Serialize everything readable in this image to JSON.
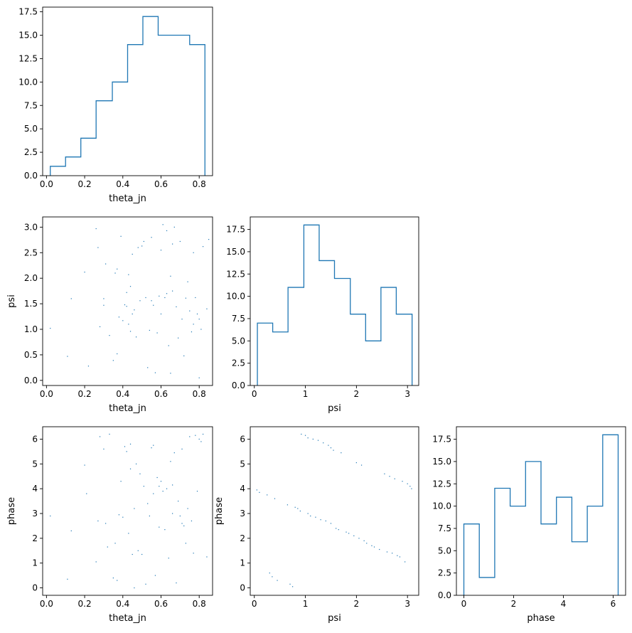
{
  "chart_data": [
    {
      "id": "hist_theta_jn",
      "type": "histogram",
      "xlabel": "theta_jn",
      "ylabel": "",
      "xlim": [
        -0.02,
        0.87
      ],
      "ylim": [
        0,
        18.0
      ],
      "xticks": [
        0.0,
        0.2,
        0.4,
        0.6,
        0.8
      ],
      "xtick_labels": [
        "0.0",
        "0.2",
        "0.4",
        "0.6",
        "0.8"
      ],
      "yticks": [
        0.0,
        2.5,
        5.0,
        7.5,
        10.0,
        12.5,
        15.0,
        17.5
      ],
      "ytick_labels": [
        "0.0",
        "2.5",
        "5.0",
        "7.5",
        "10.0",
        "12.5",
        "15.0",
        "17.5"
      ],
      "bin_edges": [
        0.02,
        0.1,
        0.18,
        0.26,
        0.345,
        0.425,
        0.505,
        0.585,
        0.665,
        0.75,
        0.83
      ],
      "counts": [
        1,
        2,
        4,
        8,
        10,
        14,
        17,
        15,
        15,
        14
      ]
    },
    {
      "id": "scatter_theta_jn_psi",
      "type": "scatter",
      "xlabel": "theta_jn",
      "ylabel": "psi",
      "xlim": [
        -0.02,
        0.87
      ],
      "ylim": [
        -0.1,
        3.2
      ],
      "xticks": [
        0.0,
        0.2,
        0.4,
        0.6,
        0.8
      ],
      "xtick_labels": [
        "0.0",
        "0.2",
        "0.4",
        "0.6",
        "0.8"
      ],
      "yticks": [
        0.0,
        0.5,
        1.0,
        1.5,
        2.0,
        2.5,
        3.0
      ],
      "ytick_labels": [
        "0.0",
        "0.5",
        "1.0",
        "1.5",
        "2.0",
        "2.5",
        "3.0"
      ],
      "points": [
        [
          0.02,
          1.02
        ],
        [
          0.11,
          0.47
        ],
        [
          0.13,
          1.6
        ],
        [
          0.2,
          2.12
        ],
        [
          0.22,
          0.28
        ],
        [
          0.26,
          2.97
        ],
        [
          0.27,
          2.6
        ],
        [
          0.28,
          1.05
        ],
        [
          0.3,
          1.47
        ],
        [
          0.31,
          2.28
        ],
        [
          0.33,
          0.88
        ],
        [
          0.35,
          0.39
        ],
        [
          0.36,
          2.1
        ],
        [
          0.37,
          0.52
        ],
        [
          0.37,
          2.18
        ],
        [
          0.38,
          1.24
        ],
        [
          0.39,
          2.82
        ],
        [
          0.4,
          1.17
        ],
        [
          0.41,
          1.48
        ],
        [
          0.42,
          1.72
        ],
        [
          0.42,
          1.45
        ],
        [
          0.43,
          1.1
        ],
        [
          0.43,
          2.07
        ],
        [
          0.44,
          0.96
        ],
        [
          0.44,
          1.84
        ],
        [
          0.45,
          1.3
        ],
        [
          0.45,
          2.47
        ],
        [
          0.46,
          1.38
        ],
        [
          0.47,
          0.85
        ],
        [
          0.48,
          2.6
        ],
        [
          0.49,
          1.56
        ],
        [
          0.5,
          2.63
        ],
        [
          0.51,
          2.72
        ],
        [
          0.52,
          1.62
        ],
        [
          0.53,
          0.25
        ],
        [
          0.54,
          0.98
        ],
        [
          0.55,
          1.56
        ],
        [
          0.55,
          2.8
        ],
        [
          0.56,
          1.47
        ],
        [
          0.57,
          0.15
        ],
        [
          0.58,
          0.93
        ],
        [
          0.59,
          1.65
        ],
        [
          0.6,
          1.3
        ],
        [
          0.61,
          3.05
        ],
        [
          0.62,
          1.62
        ],
        [
          0.63,
          1.7
        ],
        [
          0.63,
          2.93
        ],
        [
          0.64,
          0.68
        ],
        [
          0.65,
          0.14
        ],
        [
          0.65,
          2.04
        ],
        [
          0.66,
          1.75
        ],
        [
          0.67,
          3.0
        ],
        [
          0.68,
          1.44
        ],
        [
          0.69,
          0.83
        ],
        [
          0.7,
          2.72
        ],
        [
          0.71,
          1.2
        ],
        [
          0.72,
          0.48
        ],
        [
          0.73,
          1.61
        ],
        [
          0.74,
          1.93
        ],
        [
          0.75,
          1.36
        ],
        [
          0.76,
          0.95
        ],
        [
          0.77,
          1.1
        ],
        [
          0.77,
          2.5
        ],
        [
          0.78,
          1.62
        ],
        [
          0.79,
          1.3
        ],
        [
          0.8,
          1.2
        ],
        [
          0.81,
          1.0
        ],
        [
          0.82,
          2.62
        ],
        [
          0.84,
          1.4
        ],
        [
          0.85,
          2.76
        ],
        [
          0.6,
          2.55
        ],
        [
          0.66,
          2.67
        ],
        [
          0.3,
          1.6
        ],
        [
          0.8,
          0.05
        ]
      ]
    },
    {
      "id": "hist_psi",
      "type": "histogram",
      "xlabel": "psi",
      "ylabel": "",
      "xlim": [
        -0.08,
        3.22
      ],
      "ylim": [
        0,
        18.9
      ],
      "xticks": [
        0,
        1,
        2,
        3
      ],
      "xtick_labels": [
        "0",
        "1",
        "2",
        "3"
      ],
      "yticks": [
        0.0,
        2.5,
        5.0,
        7.5,
        10.0,
        12.5,
        15.0,
        17.5
      ],
      "ytick_labels": [
        "0.0",
        "2.5",
        "5.0",
        "7.5",
        "10.0",
        "12.5",
        "15.0",
        "17.5"
      ],
      "bin_edges": [
        0.06,
        0.36,
        0.66,
        0.97,
        1.27,
        1.57,
        1.88,
        2.18,
        2.48,
        2.78,
        3.09
      ],
      "counts": [
        7,
        6,
        11,
        18,
        14,
        12,
        8,
        5,
        11,
        8
      ]
    },
    {
      "id": "scatter_theta_jn_phase",
      "type": "scatter",
      "xlabel": "theta_jn",
      "ylabel": "phase",
      "xlim": [
        -0.02,
        0.87
      ],
      "ylim": [
        -0.3,
        6.5
      ],
      "xticks": [
        0.0,
        0.2,
        0.4,
        0.6,
        0.8
      ],
      "xtick_labels": [
        "0.0",
        "0.2",
        "0.4",
        "0.6",
        "0.8"
      ],
      "yticks": [
        0,
        1,
        2,
        3,
        4,
        5,
        6
      ],
      "ytick_labels": [
        "0",
        "1",
        "2",
        "3",
        "4",
        "5",
        "6"
      ],
      "points": [
        [
          0.02,
          2.9
        ],
        [
          0.11,
          0.35
        ],
        [
          0.13,
          2.3
        ],
        [
          0.2,
          4.95
        ],
        [
          0.21,
          3.8
        ],
        [
          0.26,
          1.05
        ],
        [
          0.27,
          2.7
        ],
        [
          0.28,
          6.1
        ],
        [
          0.3,
          5.6
        ],
        [
          0.31,
          2.6
        ],
        [
          0.32,
          1.65
        ],
        [
          0.33,
          6.2
        ],
        [
          0.35,
          0.4
        ],
        [
          0.36,
          1.8
        ],
        [
          0.37,
          0.3
        ],
        [
          0.38,
          2.95
        ],
        [
          0.39,
          4.3
        ],
        [
          0.4,
          2.85
        ],
        [
          0.41,
          5.7
        ],
        [
          0.42,
          5.5
        ],
        [
          0.43,
          2.2
        ],
        [
          0.44,
          5.8
        ],
        [
          0.45,
          1.35
        ],
        [
          0.46,
          3.2
        ],
        [
          0.46,
          0.0
        ],
        [
          0.47,
          5.0
        ],
        [
          0.48,
          1.5
        ],
        [
          0.49,
          4.6
        ],
        [
          0.5,
          1.35
        ],
        [
          0.51,
          4.1
        ],
        [
          0.52,
          0.15
        ],
        [
          0.53,
          3.4
        ],
        [
          0.54,
          2.9
        ],
        [
          0.55,
          5.65
        ],
        [
          0.56,
          3.8
        ],
        [
          0.57,
          0.5
        ],
        [
          0.58,
          4.45
        ],
        [
          0.59,
          2.45
        ],
        [
          0.6,
          4.3
        ],
        [
          0.61,
          3.9
        ],
        [
          0.62,
          2.35
        ],
        [
          0.63,
          4.0
        ],
        [
          0.64,
          1.2
        ],
        [
          0.65,
          5.1
        ],
        [
          0.66,
          3.0
        ],
        [
          0.67,
          5.45
        ],
        [
          0.68,
          0.2
        ],
        [
          0.69,
          3.5
        ],
        [
          0.7,
          2.9
        ],
        [
          0.71,
          5.6
        ],
        [
          0.72,
          2.5
        ],
        [
          0.73,
          1.8
        ],
        [
          0.74,
          3.2
        ],
        [
          0.75,
          6.1
        ],
        [
          0.76,
          2.7
        ],
        [
          0.77,
          1.4
        ],
        [
          0.78,
          6.15
        ],
        [
          0.79,
          3.9
        ],
        [
          0.8,
          6.0
        ],
        [
          0.81,
          5.9
        ],
        [
          0.82,
          6.2
        ],
        [
          0.84,
          1.25
        ],
        [
          0.59,
          4.1
        ],
        [
          0.44,
          4.8
        ],
        [
          0.56,
          5.75
        ],
        [
          0.66,
          4.15
        ],
        [
          0.71,
          2.6
        ]
      ]
    },
    {
      "id": "scatter_psi_phase",
      "type": "scatter",
      "xlabel": "psi",
      "ylabel": "phase",
      "xlim": [
        -0.08,
        3.22
      ],
      "ylim": [
        -0.3,
        6.5
      ],
      "xticks": [
        0,
        1,
        2,
        3
      ],
      "xtick_labels": [
        "0",
        "1",
        "2",
        "3"
      ],
      "yticks": [
        0,
        1,
        2,
        3,
        4,
        5,
        6
      ],
      "ytick_labels": [
        "0",
        "1",
        "2",
        "3",
        "4",
        "5",
        "6"
      ],
      "points": [
        [
          0.05,
          3.95
        ],
        [
          0.1,
          3.85
        ],
        [
          0.25,
          3.75
        ],
        [
          0.3,
          0.6
        ],
        [
          0.35,
          0.45
        ],
        [
          0.4,
          3.6
        ],
        [
          0.45,
          0.3
        ],
        [
          0.65,
          3.35
        ],
        [
          0.7,
          0.15
        ],
        [
          0.75,
          0.05
        ],
        [
          0.8,
          3.25
        ],
        [
          0.85,
          3.2
        ],
        [
          0.9,
          3.1
        ],
        [
          0.92,
          6.2
        ],
        [
          1.0,
          6.15
        ],
        [
          1.05,
          3.0
        ],
        [
          1.05,
          6.05
        ],
        [
          1.1,
          2.9
        ],
        [
          1.15,
          6.0
        ],
        [
          1.2,
          2.85
        ],
        [
          1.25,
          5.95
        ],
        [
          1.3,
          2.75
        ],
        [
          1.35,
          5.85
        ],
        [
          1.4,
          2.7
        ],
        [
          1.45,
          5.75
        ],
        [
          1.5,
          2.6
        ],
        [
          1.5,
          5.65
        ],
        [
          1.55,
          5.55
        ],
        [
          1.6,
          2.4
        ],
        [
          1.65,
          2.35
        ],
        [
          1.7,
          5.45
        ],
        [
          1.8,
          2.25
        ],
        [
          1.85,
          2.2
        ],
        [
          1.95,
          2.1
        ],
        [
          2.0,
          5.05
        ],
        [
          2.05,
          2.0
        ],
        [
          2.1,
          4.95
        ],
        [
          2.15,
          1.9
        ],
        [
          2.2,
          1.8
        ],
        [
          2.3,
          1.7
        ],
        [
          2.35,
          1.65
        ],
        [
          2.45,
          1.55
        ],
        [
          2.55,
          4.6
        ],
        [
          2.6,
          1.45
        ],
        [
          2.65,
          4.5
        ],
        [
          2.7,
          1.4
        ],
        [
          2.75,
          4.4
        ],
        [
          2.8,
          1.3
        ],
        [
          2.85,
          1.25
        ],
        [
          2.9,
          4.3
        ],
        [
          2.95,
          1.05
        ],
        [
          3.0,
          4.2
        ],
        [
          3.05,
          4.1
        ],
        [
          3.08,
          4.0
        ]
      ]
    },
    {
      "id": "hist_phase",
      "type": "histogram",
      "xlabel": "phase",
      "ylabel": "",
      "xlim": [
        -0.3,
        6.5
      ],
      "ylim": [
        0,
        18.9
      ],
      "xticks": [
        0,
        2,
        4,
        6
      ],
      "xtick_labels": [
        "0",
        "2",
        "4",
        "6"
      ],
      "yticks": [
        0.0,
        2.5,
        5.0,
        7.5,
        10.0,
        12.5,
        15.0,
        17.5
      ],
      "ytick_labels": [
        "0.0",
        "2.5",
        "5.0",
        "7.5",
        "10.0",
        "12.5",
        "15.0",
        "17.5"
      ],
      "bin_edges": [
        0.0,
        0.62,
        1.24,
        1.86,
        2.48,
        3.1,
        3.72,
        4.34,
        4.96,
        5.58,
        6.2
      ],
      "counts": [
        8,
        2,
        12,
        10,
        15,
        8,
        11,
        6,
        10,
        18
      ]
    }
  ],
  "colors": {
    "series": "#1f77b4",
    "axes": "#000000",
    "background": "#ffffff"
  }
}
